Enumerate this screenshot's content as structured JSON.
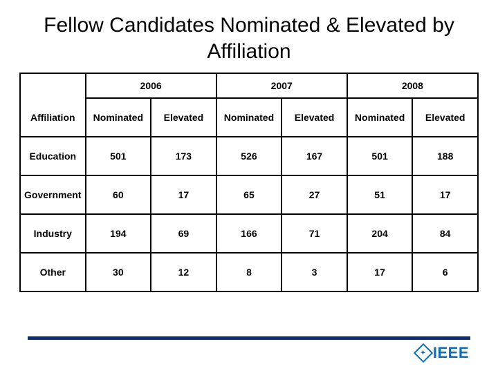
{
  "title": "Fellow Candidates Nominated & Elevated by Affiliation",
  "years": [
    "2006",
    "2007",
    "2008"
  ],
  "columns": [
    "Affiliation",
    "Nominated",
    "Elevated",
    "Nominated",
    "Elevated",
    "Nominated",
    "Elevated"
  ],
  "rows": [
    {
      "label": "Education",
      "cells": [
        "501",
        "173",
        "526",
        "167",
        "501",
        "188"
      ]
    },
    {
      "label": "Government",
      "cells": [
        "60",
        "17",
        "65",
        "27",
        "51",
        "17"
      ]
    },
    {
      "label": "Industry",
      "cells": [
        "194",
        "69",
        "166",
        "71",
        "204",
        "84"
      ]
    },
    {
      "label": "Other",
      "cells": [
        "30",
        "12",
        "8",
        "3",
        "17",
        "6"
      ]
    }
  ],
  "logo": {
    "text": "IEEE",
    "symbol": "✦"
  },
  "colors": {
    "footer_line": "#0a2f7a",
    "logo": "#0a6db3",
    "border": "#000000",
    "background": "#ffffff"
  }
}
